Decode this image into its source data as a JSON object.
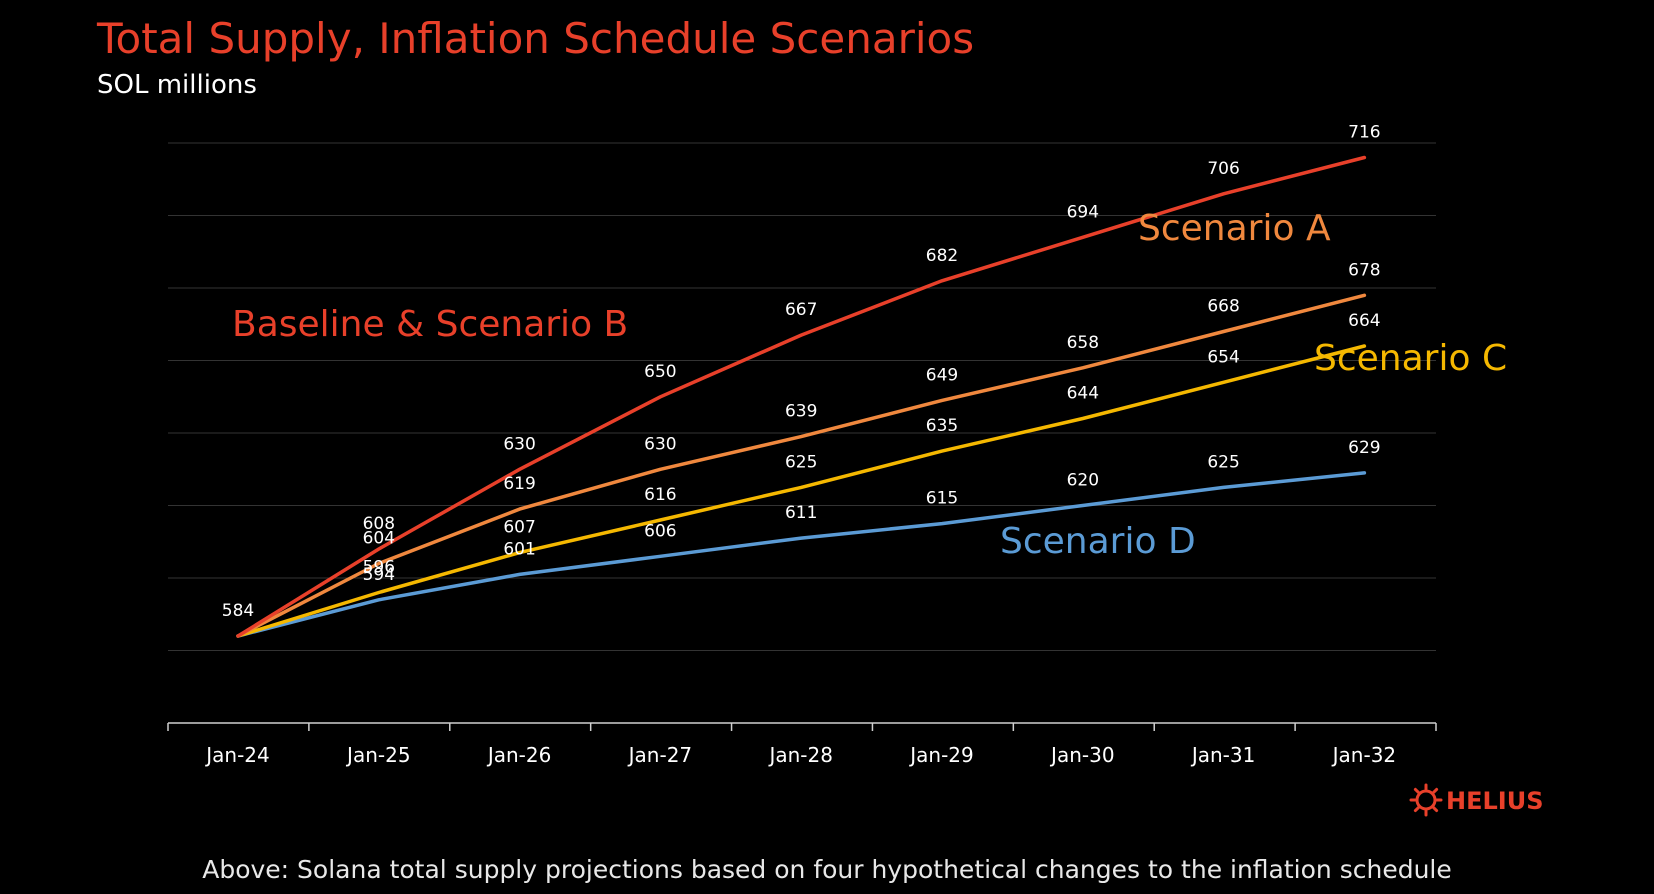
{
  "chart_data": {
    "type": "line",
    "title": "Total Supply, Inflation Schedule Scenarios",
    "subtitle": "SOL millions",
    "xlabel": "",
    "ylabel": "",
    "categories": [
      "Jan-24",
      "Jan-25",
      "Jan-26",
      "Jan-27",
      "Jan-28",
      "Jan-29",
      "Jan-30",
      "Jan-31",
      "Jan-32"
    ],
    "ylim": [
      560,
      720
    ],
    "grid": true,
    "series": [
      {
        "name": "Baseline & Scenario B",
        "color": "#e8402a",
        "values": [
          584,
          608,
          630,
          650,
          667,
          682,
          694,
          706,
          716
        ],
        "labels": [
          "584",
          "608",
          "630",
          "650",
          "667",
          "682",
          "694",
          "706",
          "716"
        ]
      },
      {
        "name": "Scenario A",
        "color": "#f0883e",
        "values": [
          584,
          604,
          619,
          630,
          639,
          649,
          658,
          668,
          678
        ],
        "labels": [
          "",
          "604",
          "619",
          "630",
          "639",
          "649",
          "658",
          "668",
          "678"
        ]
      },
      {
        "name": "Scenario C",
        "color": "#f5b800",
        "values": [
          584,
          596,
          607,
          616,
          625,
          635,
          644,
          654,
          664
        ],
        "labels": [
          "",
          "596",
          "607",
          "616",
          "625",
          "635",
          "644",
          "654",
          "664"
        ]
      },
      {
        "name": "Scenario D",
        "color": "#5b9bd5",
        "values": [
          584,
          594,
          601,
          606,
          611,
          615,
          620,
          625,
          629
        ],
        "labels": [
          "",
          "594",
          "601",
          "606",
          "611",
          "615",
          "620",
          "625",
          "629"
        ]
      }
    ],
    "annotations": [
      {
        "text": "Baseline & Scenario B",
        "color": "#e8402a"
      },
      {
        "text": "Scenario A",
        "color": "#f0883e"
      },
      {
        "text": "Scenario C",
        "color": "#f5b800"
      },
      {
        "text": "Scenario D",
        "color": "#5b9bd5"
      }
    ]
  },
  "title_color": "#e8402a",
  "logo": {
    "text": "HELIUS",
    "color": "#e8402a",
    "icon": "helius-sun-icon"
  },
  "caption": "Above: Solana total supply projections based on four hypothetical changes to the inflation schedule"
}
